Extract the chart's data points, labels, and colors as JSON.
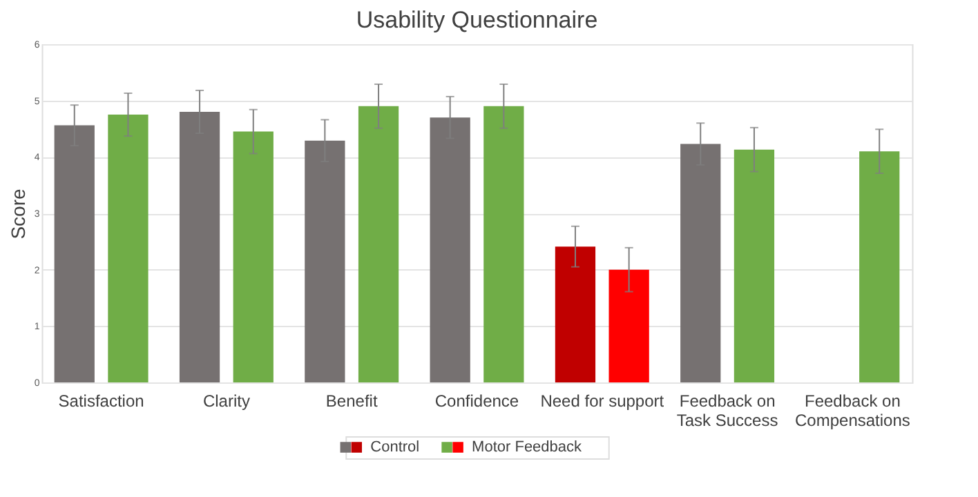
{
  "chart_data": {
    "type": "bar",
    "title": "Usability Questionnaire",
    "ylabel": "Score",
    "categories": [
      "Satisfaction",
      "Clarity",
      "Benefit",
      "Confidence",
      "Need for support",
      "Feedback on Task Success",
      "Feedback on Compensations"
    ],
    "series": [
      {
        "name": "Control",
        "color": "#767171",
        "colors": [
          "#767171",
          "#767171",
          "#767171",
          "#767171",
          "#c00000",
          "#767171",
          "#767171"
        ],
        "values": [
          4.56,
          4.8,
          4.29,
          4.7,
          2.41,
          4.23,
          null
        ],
        "errors": [
          0.36,
          0.38,
          0.37,
          0.37,
          0.36,
          0.37,
          null
        ]
      },
      {
        "name": "Motor Feedback",
        "color": "#70ad47",
        "colors": [
          "#70ad47",
          "#70ad47",
          "#70ad47",
          "#70ad47",
          "#ff0000",
          "#70ad47",
          "#70ad47"
        ],
        "values": [
          4.75,
          4.45,
          4.9,
          4.9,
          2.0,
          4.13,
          4.1
        ],
        "errors": [
          0.38,
          0.39,
          0.39,
          0.39,
          0.39,
          0.39,
          0.39
        ]
      }
    ],
    "ylim": [
      0,
      6
    ],
    "yticks": [
      0,
      1,
      2,
      3,
      4,
      5,
      6
    ],
    "grid": "y",
    "legend": "bottom"
  }
}
